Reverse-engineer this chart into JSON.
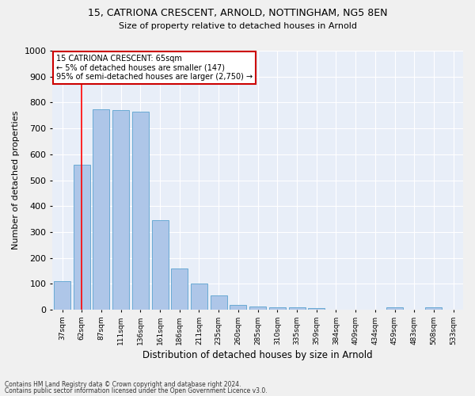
{
  "title1": "15, CATRIONA CRESCENT, ARNOLD, NOTTINGHAM, NG5 8EN",
  "title2": "Size of property relative to detached houses in Arnold",
  "xlabel": "Distribution of detached houses by size in Arnold",
  "ylabel": "Number of detached properties",
  "categories": [
    "37sqm",
    "62sqm",
    "87sqm",
    "111sqm",
    "136sqm",
    "161sqm",
    "186sqm",
    "211sqm",
    "235sqm",
    "260sqm",
    "285sqm",
    "310sqm",
    "335sqm",
    "359sqm",
    "384sqm",
    "409sqm",
    "434sqm",
    "459sqm",
    "483sqm",
    "508sqm",
    "533sqm"
  ],
  "values": [
    110,
    560,
    775,
    770,
    765,
    345,
    160,
    100,
    55,
    18,
    12,
    10,
    8,
    5,
    1,
    0,
    0,
    10,
    0,
    8,
    0
  ],
  "bar_color": "#aec6e8",
  "bar_edgecolor": "#6aaad4",
  "red_line_x": 1,
  "annotation_text": "15 CATRIONA CRESCENT: 65sqm\n← 5% of detached houses are smaller (147)\n95% of semi-detached houses are larger (2,750) →",
  "annotation_box_color": "#ffffff",
  "annotation_box_edgecolor": "#cc0000",
  "ylim": [
    0,
    1000
  ],
  "yticks": [
    0,
    100,
    200,
    300,
    400,
    500,
    600,
    700,
    800,
    900,
    1000
  ],
  "background_color": "#e8eef8",
  "grid_color": "#ffffff",
  "footer1": "Contains HM Land Registry data © Crown copyright and database right 2024.",
  "footer2": "Contains public sector information licensed under the Open Government Licence v3.0."
}
